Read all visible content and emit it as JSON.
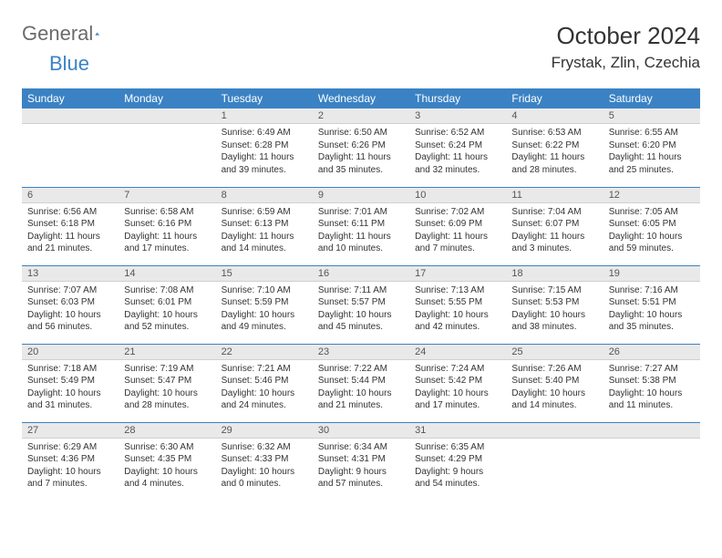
{
  "brand": {
    "part1": "General",
    "part2": "Blue"
  },
  "title": "October 2024",
  "location": "Frystak, Zlin, Czechia",
  "colors": {
    "header_bg": "#3b82c4",
    "daynum_bg": "#e9e9e9",
    "row_border": "#3b82c4"
  },
  "weekdays": [
    "Sunday",
    "Monday",
    "Tuesday",
    "Wednesday",
    "Thursday",
    "Friday",
    "Saturday"
  ],
  "weeks": [
    [
      {
        "n": "",
        "sr": "",
        "ss": "",
        "dl": ""
      },
      {
        "n": "",
        "sr": "",
        "ss": "",
        "dl": ""
      },
      {
        "n": "1",
        "sr": "Sunrise: 6:49 AM",
        "ss": "Sunset: 6:28 PM",
        "dl": "Daylight: 11 hours and 39 minutes."
      },
      {
        "n": "2",
        "sr": "Sunrise: 6:50 AM",
        "ss": "Sunset: 6:26 PM",
        "dl": "Daylight: 11 hours and 35 minutes."
      },
      {
        "n": "3",
        "sr": "Sunrise: 6:52 AM",
        "ss": "Sunset: 6:24 PM",
        "dl": "Daylight: 11 hours and 32 minutes."
      },
      {
        "n": "4",
        "sr": "Sunrise: 6:53 AM",
        "ss": "Sunset: 6:22 PM",
        "dl": "Daylight: 11 hours and 28 minutes."
      },
      {
        "n": "5",
        "sr": "Sunrise: 6:55 AM",
        "ss": "Sunset: 6:20 PM",
        "dl": "Daylight: 11 hours and 25 minutes."
      }
    ],
    [
      {
        "n": "6",
        "sr": "Sunrise: 6:56 AM",
        "ss": "Sunset: 6:18 PM",
        "dl": "Daylight: 11 hours and 21 minutes."
      },
      {
        "n": "7",
        "sr": "Sunrise: 6:58 AM",
        "ss": "Sunset: 6:16 PM",
        "dl": "Daylight: 11 hours and 17 minutes."
      },
      {
        "n": "8",
        "sr": "Sunrise: 6:59 AM",
        "ss": "Sunset: 6:13 PM",
        "dl": "Daylight: 11 hours and 14 minutes."
      },
      {
        "n": "9",
        "sr": "Sunrise: 7:01 AM",
        "ss": "Sunset: 6:11 PM",
        "dl": "Daylight: 11 hours and 10 minutes."
      },
      {
        "n": "10",
        "sr": "Sunrise: 7:02 AM",
        "ss": "Sunset: 6:09 PM",
        "dl": "Daylight: 11 hours and 7 minutes."
      },
      {
        "n": "11",
        "sr": "Sunrise: 7:04 AM",
        "ss": "Sunset: 6:07 PM",
        "dl": "Daylight: 11 hours and 3 minutes."
      },
      {
        "n": "12",
        "sr": "Sunrise: 7:05 AM",
        "ss": "Sunset: 6:05 PM",
        "dl": "Daylight: 10 hours and 59 minutes."
      }
    ],
    [
      {
        "n": "13",
        "sr": "Sunrise: 7:07 AM",
        "ss": "Sunset: 6:03 PM",
        "dl": "Daylight: 10 hours and 56 minutes."
      },
      {
        "n": "14",
        "sr": "Sunrise: 7:08 AM",
        "ss": "Sunset: 6:01 PM",
        "dl": "Daylight: 10 hours and 52 minutes."
      },
      {
        "n": "15",
        "sr": "Sunrise: 7:10 AM",
        "ss": "Sunset: 5:59 PM",
        "dl": "Daylight: 10 hours and 49 minutes."
      },
      {
        "n": "16",
        "sr": "Sunrise: 7:11 AM",
        "ss": "Sunset: 5:57 PM",
        "dl": "Daylight: 10 hours and 45 minutes."
      },
      {
        "n": "17",
        "sr": "Sunrise: 7:13 AM",
        "ss": "Sunset: 5:55 PM",
        "dl": "Daylight: 10 hours and 42 minutes."
      },
      {
        "n": "18",
        "sr": "Sunrise: 7:15 AM",
        "ss": "Sunset: 5:53 PM",
        "dl": "Daylight: 10 hours and 38 minutes."
      },
      {
        "n": "19",
        "sr": "Sunrise: 7:16 AM",
        "ss": "Sunset: 5:51 PM",
        "dl": "Daylight: 10 hours and 35 minutes."
      }
    ],
    [
      {
        "n": "20",
        "sr": "Sunrise: 7:18 AM",
        "ss": "Sunset: 5:49 PM",
        "dl": "Daylight: 10 hours and 31 minutes."
      },
      {
        "n": "21",
        "sr": "Sunrise: 7:19 AM",
        "ss": "Sunset: 5:47 PM",
        "dl": "Daylight: 10 hours and 28 minutes."
      },
      {
        "n": "22",
        "sr": "Sunrise: 7:21 AM",
        "ss": "Sunset: 5:46 PM",
        "dl": "Daylight: 10 hours and 24 minutes."
      },
      {
        "n": "23",
        "sr": "Sunrise: 7:22 AM",
        "ss": "Sunset: 5:44 PM",
        "dl": "Daylight: 10 hours and 21 minutes."
      },
      {
        "n": "24",
        "sr": "Sunrise: 7:24 AM",
        "ss": "Sunset: 5:42 PM",
        "dl": "Daylight: 10 hours and 17 minutes."
      },
      {
        "n": "25",
        "sr": "Sunrise: 7:26 AM",
        "ss": "Sunset: 5:40 PM",
        "dl": "Daylight: 10 hours and 14 minutes."
      },
      {
        "n": "26",
        "sr": "Sunrise: 7:27 AM",
        "ss": "Sunset: 5:38 PM",
        "dl": "Daylight: 10 hours and 11 minutes."
      }
    ],
    [
      {
        "n": "27",
        "sr": "Sunrise: 6:29 AM",
        "ss": "Sunset: 4:36 PM",
        "dl": "Daylight: 10 hours and 7 minutes."
      },
      {
        "n": "28",
        "sr": "Sunrise: 6:30 AM",
        "ss": "Sunset: 4:35 PM",
        "dl": "Daylight: 10 hours and 4 minutes."
      },
      {
        "n": "29",
        "sr": "Sunrise: 6:32 AM",
        "ss": "Sunset: 4:33 PM",
        "dl": "Daylight: 10 hours and 0 minutes."
      },
      {
        "n": "30",
        "sr": "Sunrise: 6:34 AM",
        "ss": "Sunset: 4:31 PM",
        "dl": "Daylight: 9 hours and 57 minutes."
      },
      {
        "n": "31",
        "sr": "Sunrise: 6:35 AM",
        "ss": "Sunset: 4:29 PM",
        "dl": "Daylight: 9 hours and 54 minutes."
      },
      {
        "n": "",
        "sr": "",
        "ss": "",
        "dl": ""
      },
      {
        "n": "",
        "sr": "",
        "ss": "",
        "dl": ""
      }
    ]
  ]
}
